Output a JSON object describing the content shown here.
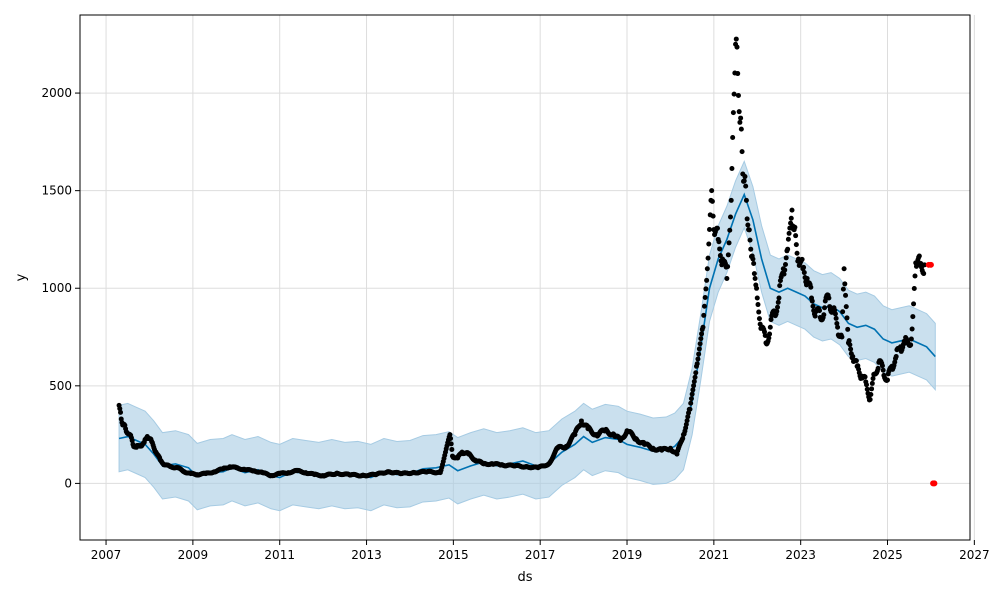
{
  "chart_data": {
    "type": "scatter",
    "title": "",
    "xlabel": "ds",
    "ylabel": "y",
    "xlim": [
      2006.4,
      2026.9
    ],
    "ylim": [
      -290,
      2400
    ],
    "x_ticks": [
      "2007",
      "2009",
      "2011",
      "2013",
      "2015",
      "2017",
      "2019",
      "2021",
      "2023",
      "2025",
      "2027"
    ],
    "y_ticks": [
      0,
      500,
      1000,
      1500,
      2000
    ],
    "grid": true,
    "legend": "none",
    "colors": {
      "observed": "#000000",
      "forecast_line": "#0072B2",
      "interval_fill": "#a6cbe3",
      "extra_points": "#ff0000",
      "grid": "#dddddd"
    },
    "series": [
      {
        "kind": "observed-points",
        "points": [
          [
            2007.3,
            400
          ],
          [
            2007.35,
            330
          ],
          [
            2007.4,
            300
          ],
          [
            2007.45,
            280
          ],
          [
            2007.55,
            250
          ],
          [
            2007.62,
            200
          ],
          [
            2007.7,
            185
          ],
          [
            2007.8,
            195
          ],
          [
            2007.88,
            210
          ],
          [
            2007.95,
            240
          ],
          [
            2008.05,
            215
          ],
          [
            2008.15,
            160
          ],
          [
            2008.25,
            120
          ],
          [
            2008.35,
            95
          ],
          [
            2008.5,
            85
          ],
          [
            2008.65,
            80
          ],
          [
            2008.8,
            60
          ],
          [
            2008.95,
            50
          ],
          [
            2009.1,
            45
          ],
          [
            2009.3,
            50
          ],
          [
            2009.5,
            60
          ],
          [
            2009.7,
            75
          ],
          [
            2009.85,
            85
          ],
          [
            2010.0,
            80
          ],
          [
            2010.2,
            70
          ],
          [
            2010.4,
            65
          ],
          [
            2010.6,
            55
          ],
          [
            2010.8,
            40
          ],
          [
            2011.0,
            50
          ],
          [
            2011.2,
            55
          ],
          [
            2011.4,
            65
          ],
          [
            2011.6,
            55
          ],
          [
            2011.8,
            45
          ],
          [
            2012.0,
            40
          ],
          [
            2012.3,
            50
          ],
          [
            2012.6,
            45
          ],
          [
            2012.9,
            40
          ],
          [
            2013.2,
            45
          ],
          [
            2013.5,
            60
          ],
          [
            2013.8,
            50
          ],
          [
            2014.1,
            55
          ],
          [
            2014.4,
            60
          ],
          [
            2014.7,
            55
          ],
          [
            2014.92,
            250
          ],
          [
            2014.98,
            140
          ],
          [
            2015.1,
            130
          ],
          [
            2015.2,
            160
          ],
          [
            2015.35,
            150
          ],
          [
            2015.5,
            120
          ],
          [
            2015.7,
            100
          ],
          [
            2015.9,
            100
          ],
          [
            2016.1,
            95
          ],
          [
            2016.4,
            90
          ],
          [
            2016.7,
            85
          ],
          [
            2016.95,
            80
          ],
          [
            2017.2,
            100
          ],
          [
            2017.4,
            180
          ],
          [
            2017.6,
            190
          ],
          [
            2017.8,
            250
          ],
          [
            2017.95,
            320
          ],
          [
            2018.1,
            280
          ],
          [
            2018.3,
            250
          ],
          [
            2018.5,
            270
          ],
          [
            2018.7,
            250
          ],
          [
            2018.85,
            220
          ],
          [
            2019.0,
            270
          ],
          [
            2019.2,
            230
          ],
          [
            2019.4,
            200
          ],
          [
            2019.6,
            180
          ],
          [
            2019.8,
            170
          ],
          [
            2020.0,
            180
          ],
          [
            2020.15,
            150
          ],
          [
            2020.3,
            250
          ],
          [
            2020.45,
            380
          ],
          [
            2020.6,
            600
          ],
          [
            2020.75,
            800
          ],
          [
            2020.85,
            1100
          ],
          [
            2020.95,
            1500
          ],
          [
            2021.0,
            1300
          ],
          [
            2021.1,
            1250
          ],
          [
            2021.2,
            1150
          ],
          [
            2021.3,
            1050
          ],
          [
            2021.4,
            1450
          ],
          [
            2021.45,
            1900
          ],
          [
            2021.5,
            2250
          ],
          [
            2021.55,
            2100
          ],
          [
            2021.6,
            1850
          ],
          [
            2021.65,
            1700
          ],
          [
            2021.7,
            1550
          ],
          [
            2021.75,
            1450
          ],
          [
            2021.8,
            1300
          ],
          [
            2021.85,
            1200
          ],
          [
            2021.9,
            1150
          ],
          [
            2021.95,
            1050
          ],
          [
            2022.0,
            950
          ],
          [
            2022.1,
            800
          ],
          [
            2022.2,
            720
          ],
          [
            2022.3,
            800
          ],
          [
            2022.4,
            880
          ],
          [
            2022.5,
            950
          ],
          [
            2022.6,
            1100
          ],
          [
            2022.7,
            1200
          ],
          [
            2022.8,
            1400
          ],
          [
            2022.85,
            1300
          ],
          [
            2022.95,
            1150
          ],
          [
            2023.05,
            1100
          ],
          [
            2023.15,
            1050
          ],
          [
            2023.25,
            950
          ],
          [
            2023.35,
            880
          ],
          [
            2023.45,
            850
          ],
          [
            2023.55,
            900
          ],
          [
            2023.65,
            950
          ],
          [
            2023.75,
            880
          ],
          [
            2023.85,
            800
          ],
          [
            2023.95,
            750
          ],
          [
            2024.0,
            1100
          ],
          [
            2024.1,
            720
          ],
          [
            2024.2,
            650
          ],
          [
            2024.3,
            600
          ],
          [
            2024.4,
            550
          ],
          [
            2024.5,
            520
          ],
          [
            2024.6,
            430
          ],
          [
            2024.7,
            560
          ],
          [
            2024.8,
            620
          ],
          [
            2024.9,
            580
          ],
          [
            2025.0,
            530
          ],
          [
            2025.1,
            600
          ],
          [
            2025.2,
            650
          ],
          [
            2025.3,
            700
          ],
          [
            2025.4,
            720
          ],
          [
            2025.55,
            740
          ],
          [
            2025.6,
            920
          ],
          [
            2025.65,
            1130
          ],
          [
            2025.75,
            1120
          ],
          [
            2025.85,
            1120
          ]
        ]
      },
      {
        "kind": "forecast-line",
        "points": [
          [
            2007.3,
            230
          ],
          [
            2007.5,
            240
          ],
          [
            2007.7,
            220
          ],
          [
            2007.9,
            200
          ],
          [
            2008.1,
            150
          ],
          [
            2008.3,
            90
          ],
          [
            2008.6,
            100
          ],
          [
            2008.9,
            80
          ],
          [
            2009.1,
            35
          ],
          [
            2009.4,
            55
          ],
          [
            2009.7,
            60
          ],
          [
            2009.9,
            80
          ],
          [
            2010.2,
            55
          ],
          [
            2010.5,
            70
          ],
          [
            2010.8,
            40
          ],
          [
            2011.0,
            30
          ],
          [
            2011.3,
            60
          ],
          [
            2011.6,
            50
          ],
          [
            2011.9,
            40
          ],
          [
            2012.2,
            55
          ],
          [
            2012.5,
            40
          ],
          [
            2012.8,
            45
          ],
          [
            2013.1,
            30
          ],
          [
            2013.4,
            60
          ],
          [
            2013.7,
            45
          ],
          [
            2014.0,
            50
          ],
          [
            2014.3,
            75
          ],
          [
            2014.6,
            80
          ],
          [
            2014.9,
            95
          ],
          [
            2015.1,
            65
          ],
          [
            2015.4,
            90
          ],
          [
            2015.7,
            110
          ],
          [
            2016.0,
            90
          ],
          [
            2016.3,
            100
          ],
          [
            2016.6,
            115
          ],
          [
            2016.9,
            90
          ],
          [
            2017.2,
            100
          ],
          [
            2017.5,
            160
          ],
          [
            2017.8,
            200
          ],
          [
            2018.0,
            240
          ],
          [
            2018.2,
            210
          ],
          [
            2018.5,
            235
          ],
          [
            2018.8,
            225
          ],
          [
            2019.0,
            200
          ],
          [
            2019.3,
            185
          ],
          [
            2019.6,
            165
          ],
          [
            2019.9,
            170
          ],
          [
            2020.1,
            190
          ],
          [
            2020.3,
            240
          ],
          [
            2020.5,
            420
          ],
          [
            2020.7,
            700
          ],
          [
            2020.9,
            1000
          ],
          [
            2021.1,
            1150
          ],
          [
            2021.3,
            1250
          ],
          [
            2021.5,
            1380
          ],
          [
            2021.7,
            1480
          ],
          [
            2021.9,
            1350
          ],
          [
            2022.1,
            1150
          ],
          [
            2022.3,
            1000
          ],
          [
            2022.5,
            980
          ],
          [
            2022.7,
            1000
          ],
          [
            2022.9,
            980
          ],
          [
            2023.1,
            960
          ],
          [
            2023.3,
            920
          ],
          [
            2023.5,
            900
          ],
          [
            2023.7,
            910
          ],
          [
            2023.9,
            880
          ],
          [
            2024.1,
            820
          ],
          [
            2024.3,
            800
          ],
          [
            2024.5,
            810
          ],
          [
            2024.7,
            790
          ],
          [
            2024.9,
            740
          ],
          [
            2025.1,
            720
          ],
          [
            2025.3,
            730
          ],
          [
            2025.5,
            740
          ],
          [
            2025.7,
            720
          ],
          [
            2025.9,
            700
          ],
          [
            2026.1,
            650
          ]
        ]
      },
      {
        "kind": "uncertainty-interval",
        "band_half_width": 170
      },
      {
        "kind": "extra-points",
        "points": [
          [
            2025.95,
            1120
          ],
          [
            2026.0,
            1120
          ],
          [
            2026.05,
            0
          ],
          [
            2026.08,
            0
          ]
        ]
      }
    ]
  }
}
